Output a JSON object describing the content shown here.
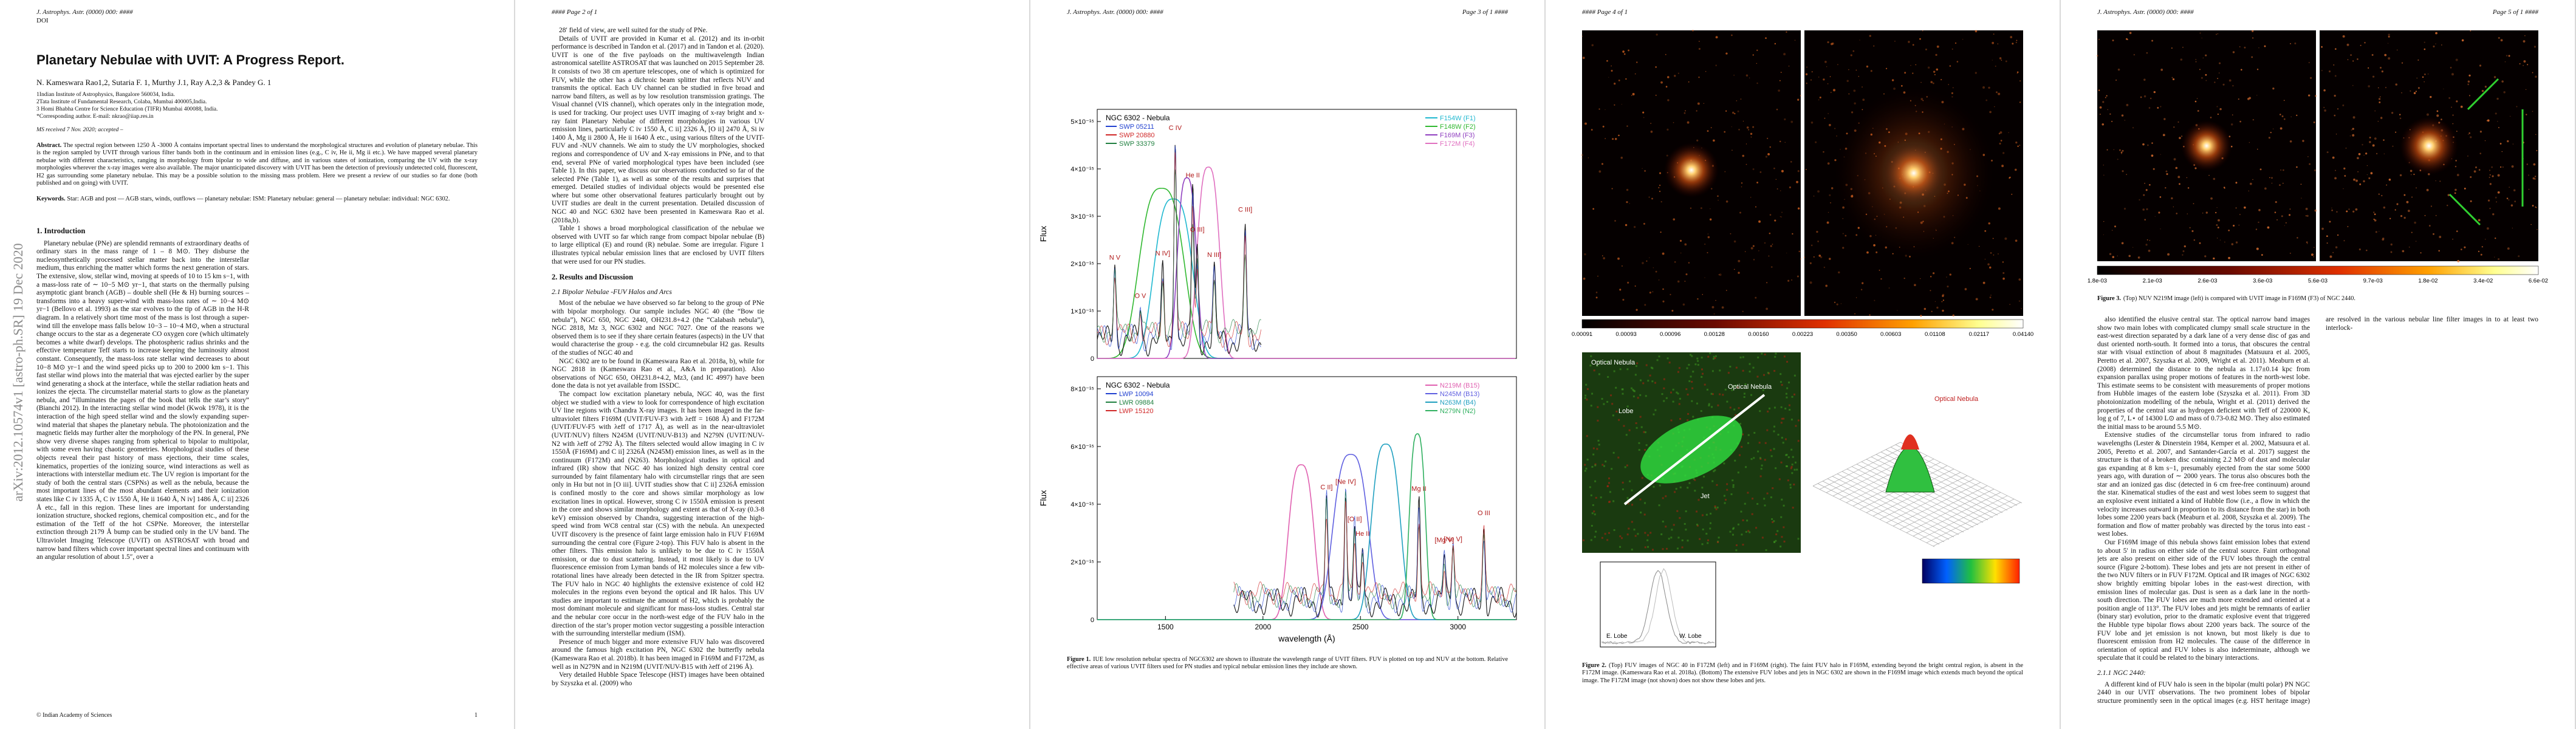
{
  "page1": {
    "journal": "J. Astrophys. Astr. (0000) 000: ####",
    "doi": "DOI",
    "title": "Planetary Nebulae with UVIT: A Progress Report.",
    "authors": "N. Kameswara Rao1,2, Sutaria F. 1, Murthy J.1, Ray A.2,3 & Pandey G. 1",
    "affiliations": [
      "1Indian Institute of Astrophysics, Bangalore 560034, India.",
      "2Tata Institute of Fundamental Research, Colaba, Mumbai 400005,India.",
      "3 Homi Bhabha Centre for Science Education (TIFR) Mumbai 400088, India.",
      "*Corresponding author. E-mail: nkrao@iiap.res.in"
    ],
    "received": "MS received 7 Nov. 2020; accepted –",
    "abstract": {
      "label": "Abstract.",
      "text": "The spectral region between 1250 Å -3000 Å contains important spectral lines to understand the morphological structures and evolution of planetary nebulae. This is the region sampled by UVIT through various filter bands both in the continuum and in emission lines (e.g., C iv, He ii, Mg ii etc.). We have mapped several planetary nebulae with different characteristics, ranging in morphology from bipolar to wide and diffuse, and in various states of ionization, comparing the UV with the x-ray morphologies wherever the x-ray images were also available. The major unanticipated discovery with UVIT has been the detection of previously undetected cold, fluorescent, H2 gas surrounding some planetary nebulae. This may be a possible solution to the missing mass problem. Here we present a review of our studies so far done (both published and on going) with UVIT."
    },
    "keywords": {
      "label": "Keywords.",
      "text": "Star: AGB and post — AGB stars, winds, outflows — planetary nebulae: ISM: Planetary nebulae: general — planetary nebulae: individual: NGC 6302."
    },
    "body": [
      {
        "h": "1. Introduction"
      },
      {
        "p": "Planetary nebulae (PNe) are splendid remnants of extraordinary deaths of ordinary stars in the mass range of 1 – 8 M⊙. They disburse the nucleosynthetically processed stellar matter back into the interstellar medium, thus enriching the matter which forms the next generation of stars. The extensive, slow, stellar wind, moving at speeds of 10 to 15 km s−1, with a mass-loss rate of ∼ 10−5 M⊙ yr−1, that starts on the thermally pulsing asymptotic giant branch (AGB) – double shell (He & H) burning sources – transforms into a heavy super-wind with mass-loss rates of ∼ 10−4 M⊙ yr−1 (Bellovo et al. 1993) as the star evolves to the tip of AGB in the H-R diagram. In a relatively short time most of the mass is lost through a super-wind till the envelope mass falls below 10−3 – 10−4 M⊙, when a structural change occurs to the star as a degenerate CO oxygen core (which ultimately becomes a white dwarf) develops. The photospheric radius shrinks and the effective temperature Teff starts to increase keeping the luminosity almost constant. Consequently, the mass-loss rate stellar wind decreases to about 10−8 M⊙ yr−1 and the wind speed picks up to 200 to 2000 km s−1. This fast stellar wind plows into the material that was ejected earlier by the super wind generating a shock at the interface, while the stellar radiation heats and ionizes the ejecta. The circumstellar material starts to glow as the planetary nebula, and “illuminates the pages of the book that tells the star’s story” (Bianchi 2012). In the interacting stellar wind model (Kwok 1978), it is the interaction of the high speed stellar wind and the slowly expanding super-wind material that shapes the planetary nebula. The photoionization and the magnetic fields may further alter the morphology of the PN. In general, PNe show very diverse shapes ranging from spherical to bipolar to multipolar, with some even having chaotic geometries. Morphological studies of these objects reveal their past history of mass ejections, their time scales, kinematics, properties of the ionizing source, wind interactions as well as interactions with interstellar medium etc. The UV region is important for the study of both the central stars (CSPNs) as well as the nebula, because the most important lines of the most abundant elements and their ionization states like C iv 1335 Å, C iv 1550 Å, He ii 1640 Å, N iv] 1486 Å, C ii] 2326 Å etc., fall in this region. These lines are important for understanding ionization structure, shocked regions, chemical composition etc., and for the estimation of the Teff of the hot CSPNe. Moreover, the interstellar extinction through 2179 Å bump can be studied only in the UV band. The Ultraviolet Imaging Telescope (UVIT) on ASTROSAT with broad and narrow band filters which cover important spectral lines and continuum with an angular resolution of about 1.5″, over a"
      }
    ],
    "arxiv": "arXiv:2012.10574v1  [astro-ph.SR]  19 Dec 2020",
    "footer": "© Indian Academy of Sciences",
    "page_number": "1"
  },
  "page2": {
    "header": "#### Page 2 of 1",
    "body": [
      {
        "p": "28′ field of view, are well suited for the study of PNe."
      },
      {
        "p": "Details of UVIT are provided in Kumar et al. (2012) and its in-orbit performance is described in Tandon et al. (2017) and in Tandon et al. (2020). UVIT is one of the five payloads on the multiwavelength Indian astronomical satellite ASTROSAT that was launched on 2015 September 28. It consists of two 38 cm aperture telescopes, one of which is optimized for FUV, while the other has a dichroic beam splitter that reflects NUV and transmits the optical. Each UV channel can be studied in five broad and narrow band filters, as well as by low resolution transmission gratings. The Visual channel (VIS channel), which operates only in the integration mode, is used for tracking. Our project uses UVIT imaging of x-ray bright and x-ray faint Planetary Nebulae of different morphologies in various UV emission lines, particularly C iv 1550 Å, C ii] 2326 Å, [O ii] 2470 Å, Si iv 1400 Å, Mg ii 2800 Å, He ii 1640 Å etc., using various filters of the UVIT-FUV and -NUV channels. We aim to study the UV morphologies, shocked regions and correspondence of UV and X-ray emissions in PNe, and to that end, several PNe of varied morphological types have been included (see Table 1). In this paper, we discuss our observations conducted so far of the selected PNe (Table 1), as well as some of the results and surprises that emerged. Detailed studies of individual objects would be presented else where but some other observational features particularly brought out by UVIT studies are dealt in the current presentation. Detailed discussion of NGC 40 and NGC 6302 have been presented in Kameswara Rao et al. (2018a,b)."
      },
      {
        "p": "Table 1 shows a broad morphological classification of the nebulae we observed with UVIT so far which range from compact bipolar nebulae (B) to large elliptical (E) and round (R) nebulae. Some are irregular. Figure 1 illustrates typical nebular emission lines that are enclosed by UVIT filters that were used for our PN studies."
      },
      {
        "h": "2. Results and Discussion"
      },
      {
        "sh": "2.1 Bipolar Nebulae -FUV Halos and Arcs"
      },
      {
        "p": "Most of the nebulae we have observed so far belong to the group of PNe with bipolar morphology. Our sample includes NGC 40 (the “Bow tie nebula”), NGC 650, NGC 2440, OH231.8+4.2 (the “Calabash nebula”), NGC 2818, Mz 3, NGC 6302 and NGC 7027. One of the reasons we observed them is to see if they share certain features (aspects) in the UV that would characterise the group - e.g. the cold circumnebular H2 gas. Results of the studies of NGC 40 and"
      },
      {
        "p": "NGC 6302 are to be found in (Kameswara Rao et al. 2018a, b), while for NGC 2818 in (Kameswara Rao et al., A&A in preparation). Also observations of NGC 650, OH231.8+4.2, Mz3, (and IC 4997) have been done the data is not yet available from ISSDC."
      },
      {
        "p": "The compact low excitation planetary nebula, NGC 40, was the first object we studied with a view to look for correspondence of high excitation UV line regions with Chandra X-ray images. It has been imaged in the far-ultraviolet filters F169M (UVIT/FUV-F3 with λeff = 1608 Å) and F172M (UVIT/FUV-F5 with λeff of 1717 Å), as well as in the near-ultraviolet (UVIT/NUV) filters N245M (UVIT/NUV-B13) and N279N (UVIT/NUV-N2 with λeff of 2792 Å). The filters selected would allow imaging in C iv 1550Å (F169M) and C ii] 2326Å (N245M) emission lines, as well as in the continuum (F172M) and (N263). Morphological studies in optical and infrared (IR) show that NGC 40 has ionized high density central core surrounded by faint filamentary halo with circumstellar rings that are seen only in Hα but not in [O iii]. UVIT studies show that C ii] 2326Å emission is confined mostly to the core and shows similar morphology as low excitation lines in optical. However, strong C iv 1550Å emission is present in the core and shows similar morphology and extent as that of X-ray (0.3-8 keV) emission observed by Chandra, suggesting interaction of the high-speed wind from WC8 central star (CS) with the nebula. An unexpected UVIT discovery is the presence of faint large emission halo in FUV F169M surrounding the central core (Figure 2-top). This FUV halo is absent in the other filters. This emission halo is unlikely to be due to C iv 1550Å emission, or due to dust scattering. Instead, it most likely is due to UV fluorescence emission from Lyman bands of H2 molecules since a few vib-rotational lines have already been detected in the IR from Spitzer spectra. The FUV halo in NGC 40 highlights the extensive existence of cold H2 molecules in the regions even beyond the optical and IR halos. This UV studies are important to estimate the amount of H2, which is probably the most dominant molecule and significant for mass-loss studies. Central star and the nebular core occur in the north-west edge of the FUV halo in the direction of the star’s proper motion vector suggesting a possible interaction with the surrounding interstellar medium (ISM)."
      },
      {
        "p": "Presence of much bigger and more extensive FUV halo was discovered around the famous high excitation PN, NGC 6302 the butterfly nebula (Kameswara Rao et al. 2018b). It has been imaged in F169M and F172M, as well as in N279N and in N219M (UVIT/NUV-B15 with λeff of 2196 Å)."
      },
      {
        "p": "Very detailed Hubble Space Telescope (HST) images have been obtained by Szyszka et al. (2009) who"
      }
    ]
  },
  "page3": {
    "journal": "J. Astrophys. Astr. (0000) 000: ####",
    "header": "Page 3 of 1 ####",
    "figure": {
      "y_label": "Flux",
      "x_label": "wavelength (Å)",
      "x_ticks": [
        "1500",
        "2000",
        "2500",
        "3000"
      ],
      "panels": [
        {
          "name": "NGC 6302 - Nebula",
          "y_ticks": [
            "0",
            "1×10⁻¹⁵",
            "2×10⁻¹⁵",
            "3×10⁻¹⁵",
            "4×10⁻¹⁵",
            "5×10⁻¹⁵"
          ],
          "spectra": [
            {
              "name": "SWP 05211",
              "color": "#2040d0"
            },
            {
              "name": "SWP 20880",
              "color": "#d02828"
            },
            {
              "name": "SWP 33379",
              "color": "#208040"
            }
          ],
          "filters": [
            {
              "name": "F154W (F1)",
              "color": "#20b8d0"
            },
            {
              "name": "F148W (F2)",
              "color": "#30b830"
            },
            {
              "name": "F169M (F3)",
              "color": "#9040c0"
            },
            {
              "name": "F172M (F4)",
              "color": "#e070c0"
            }
          ],
          "lines": [
            "N V",
            "O V",
            "N IV]",
            "C IV",
            "He II",
            "O III]",
            "N III]",
            "C III]"
          ]
        },
        {
          "name": "NGC 6302 - Nebula",
          "y_ticks": [
            "0",
            "2×10⁻¹⁵",
            "4×10⁻¹⁵",
            "6×10⁻¹⁵",
            "8×10⁻¹⁵"
          ],
          "spectra": [
            {
              "name": "LWP 10094",
              "color": "#2040d0"
            },
            {
              "name": "LWR 09884",
              "color": "#208040"
            },
            {
              "name": "LWP 15120",
              "color": "#d02828"
            }
          ],
          "filters": [
            {
              "name": "N219M (B15)",
              "color": "#e060b0"
            },
            {
              "name": "N245M (B13)",
              "color": "#6060e0"
            },
            {
              "name": "N263M (B4)",
              "color": "#20a0c0"
            },
            {
              "name": "N279N (N2)",
              "color": "#30b060"
            }
          ],
          "lines": [
            "C II]",
            "[Ne IV]",
            "[O II]",
            "He II",
            "[Ne V]",
            "[Mg V]",
            "Mg II",
            "O III"
          ]
        }
      ]
    },
    "caption": {
      "label": "Figure 1.",
      "text": "IUE low resolution nebular spectra of NGC6302 are shown to illustrate the wavelength range of UVIT filters. FUV is plotted on top and NUV at the bottom. Relative effective areas of various UVIT filters used for PN studies and typical nebular emission lines they include are shown."
    }
  },
  "page4": {
    "header": "#### Page 4 of 1",
    "figure": {
      "colorbar_ticks": [
        "0.00091",
        "0.00093",
        "0.00096",
        "0.00128",
        "0.00160",
        "0.00223",
        "0.00350",
        "0.00603",
        "0.01108",
        "0.02117",
        "0.04140"
      ],
      "labels": [
        "Optical Nebula",
        "Lobe",
        "Jet",
        "Optical Nebula"
      ],
      "profile_labels": [
        "E. Lobe",
        "W. Lobe"
      ]
    },
    "caption": {
      "label": "Figure 2.",
      "text": "(Top) FUV images of NGC 40 in F172M (left) and in F169M (right). The faint FUV halo in F169M, extending beyond the bright central region, is absent in the F172M image. (Kameswara Rao et al. 2018a). (Bottom) The extensive FUV lobes and jets in NGC 6302 are shown in the F169M image which extends much beyond the optical image. The F172M image (not shown) does not show these lobes and jets."
    }
  },
  "page5": {
    "journal": "J. Astrophys. Astr. (0000) 000: ####",
    "header": "Page 5 of 1 ####",
    "figure": {
      "colorbar_ticks": [
        "1.8e-03",
        "2.1e-03",
        "2.6e-03",
        "3.6e-03",
        "5.6e-03",
        "9.7e-03",
        "1.8e-02",
        "3.4e-02",
        "6.6e-02"
      ]
    },
    "caption": {
      "label": "Figure 3.",
      "text": "(Top) NUV N219M image (left) is compared with UVIT image in F169M (F3) of NGC 2440."
    },
    "body": [
      {
        "p": "also identified the elusive central star. The optical narrow band images show two main lobes with complicated clumpy small scale structure in the east-west direction separated by a dark lane of a very dense disc of gas and dust oriented north-south. It formed into a torus, that obscures the central star with visual extinction of about 8 magnitudes (Matsuura et al. 2005, Peretto et al. 2007, Szyszka et al. 2009, Wright et al. 2011). Meaburn et al. (2008) determined the distance to the nebula as 1.17±0.14 kpc from expansion parallax using proper motions of features in the north-west lobe. This estimate seems to be consistent with measurements of proper motions from Hubble images of the eastern lobe (Szyszka et al. 2011). From 3D photoionization modelling of the nebula, Wright et al. (2011) derived the properties of the central star as hydrogen deficient with Teff of 220000 K, log g of 7, L⋆ of 14300 L⊙ and mass of 0.73-0.82 M⊙. They also estimated the initial mass to be around 5.5 M⊙."
      },
      {
        "p": "Extensive studies of the circumstellar torus from infrared to radio wavelengths (Lester & Dinerstein 1984, Kemper et al. 2002, Matsuura et al. 2005, Peretto et al. 2007, and Santander-García et al. 2017) suggest the structure is that of a broken disc containing 2.2 M⊙ of dust and molecular gas expanding at 8 km s−1, presumably ejected from the star some 5000 years ago, with duration of ∼ 2000 years. The torus also obscures both the star and an ionized gas disc (detected in 6 cm free-free continuum) around the star. Kinematical studies of the east and west lobes seem to suggest that an explosive event initiated a kind of Hubble flow (i.e., a flow in which the velocity increases outward in proportion to its distance from the star) in both lobes some 2200 years back (Meaburn et al. 2008, Szyszka et al. 2009). The formation and flow of matter probably was directed by the torus into east - west lobes."
      },
      {
        "p": "Our F169M image of this nebula shows faint emission lobes that extend to about 5′ in radius on either side of the central source. Faint orthogonal jets are also present on either side of the FUV lobes through the central source (Figure 2-bottom). These lobes and jets are not present in either of the two NUV filters or in FUV F172M. Optical and IR images of NGC 6302 show brightly emitting bipolar lobes in the east-west direction, with emission lines of molecular gas. Dust is seen as a dark lane in the north-south direction. The FUV lobes are much more extended and oriented at a position angle of 113°. The FUV lobes and jets might be remnants of earlier (binary star) evolution, prior to the dramatic explosive event that triggered the Hubble type bipolar flows about 2200 years back. The source of the FUV lobe and jet emission is not known, but most likely is due to fluorescent emission from H2 molecules. The cause of the difference in orientation of optical and FUV lobes is also indeterminate, although we speculate that it could be related to the binary interactions."
      },
      {
        "sh": "2.1.1 NGC 2440:"
      },
      {
        "p": "A different kind of FUV halo is seen in the bipolar (multi polar) PN NGC 2440 in our UVIT observations. The two prominent lobes of bipolar structure prominently seen in the optical images (e.g. HST heritage image) are resolved in the various nebular line filter images in to at least two interlock-"
      }
    ]
  }
}
